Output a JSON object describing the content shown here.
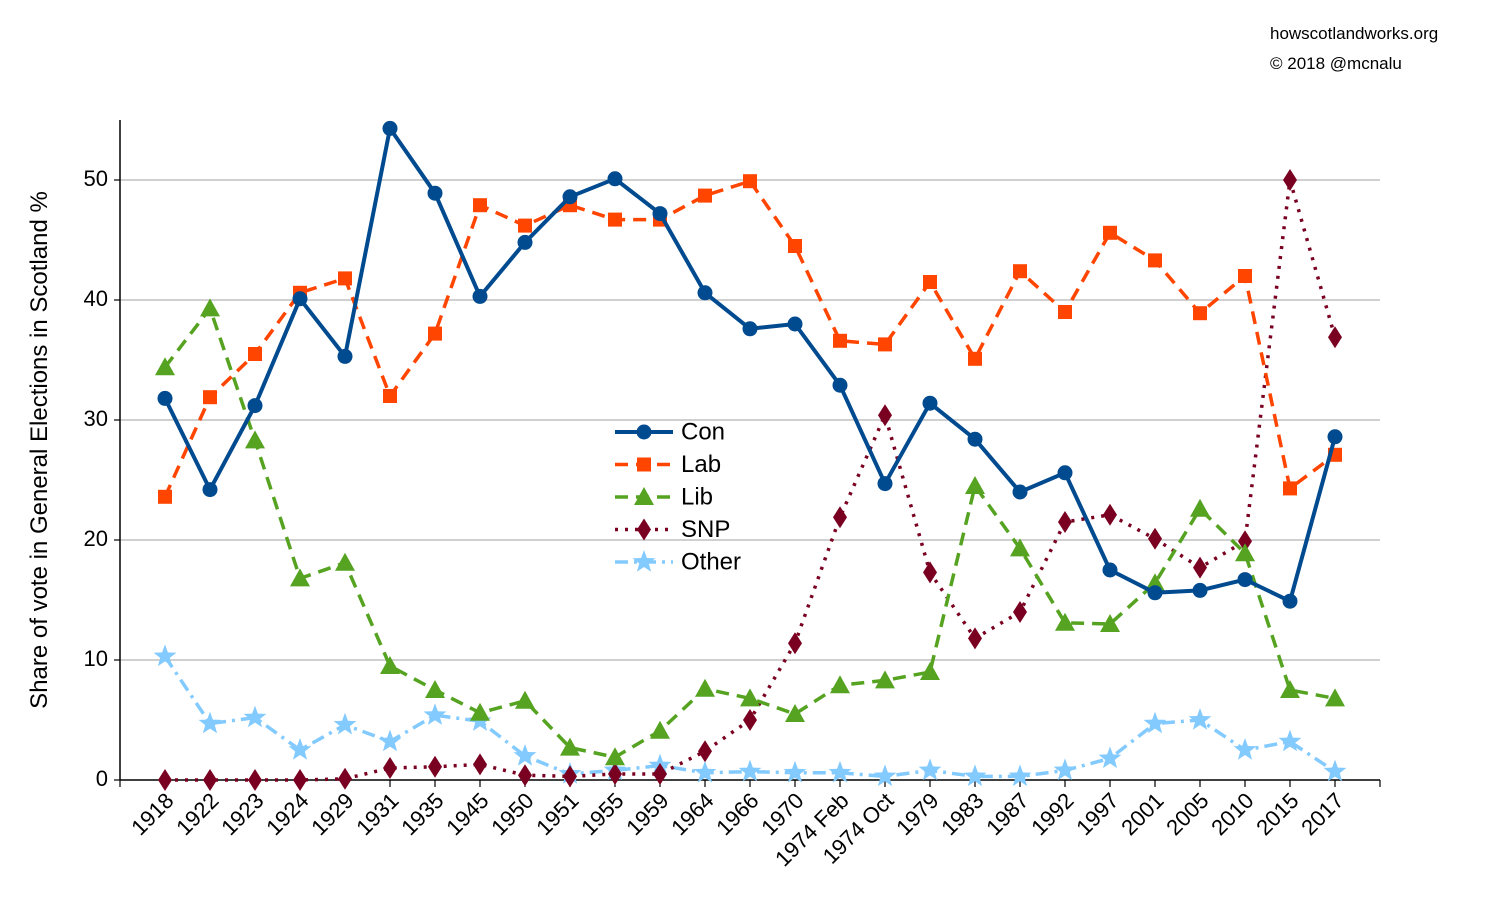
{
  "credits": {
    "site": "howscotlandworks.org",
    "copyright": "© 2018  @mcnalu"
  },
  "chart_data": {
    "type": "line",
    "title": "",
    "xlabel": "",
    "ylabel": "Share of vote in General Elections in Scotland %",
    "ylim": [
      0,
      55
    ],
    "yticks": [
      0,
      10,
      20,
      30,
      40,
      50
    ],
    "grid": "horizontal",
    "legend_position": "center",
    "categories": [
      "1918",
      "1922",
      "1923",
      "1924",
      "1929",
      "1931",
      "1935",
      "1945",
      "1950",
      "1951",
      "1955",
      "1959",
      "1964",
      "1966",
      "1970",
      "1974 Feb",
      "1974 Oct",
      "1979",
      "1983",
      "1987",
      "1992",
      "1997",
      "2001",
      "2005",
      "2010",
      "2015",
      "2017"
    ],
    "series": [
      {
        "name": "Con",
        "color": "#004a8f",
        "marker": "circle",
        "dash": "solid",
        "values": [
          31.8,
          24.2,
          31.2,
          40.1,
          35.3,
          54.3,
          48.9,
          40.3,
          44.8,
          48.6,
          50.1,
          47.2,
          40.6,
          37.6,
          38.0,
          32.9,
          24.7,
          31.4,
          28.4,
          24.0,
          25.6,
          17.5,
          15.6,
          15.8,
          16.7,
          14.9,
          28.6
        ]
      },
      {
        "name": "Lab",
        "color": "#ff4500",
        "marker": "square",
        "dash": "dash",
        "values": [
          23.6,
          31.9,
          35.5,
          40.6,
          41.8,
          32.0,
          37.2,
          47.9,
          46.2,
          47.9,
          46.7,
          46.7,
          48.7,
          49.9,
          44.5,
          36.6,
          36.3,
          41.5,
          35.1,
          42.4,
          39.0,
          45.6,
          43.3,
          38.9,
          42.0,
          24.3,
          27.1
        ]
      },
      {
        "name": "Lib",
        "color": "#55a321",
        "marker": "triangle",
        "dash": "dash",
        "values": [
          34.4,
          39.3,
          28.3,
          16.8,
          18.1,
          9.5,
          7.5,
          5.6,
          6.6,
          2.7,
          1.9,
          4.1,
          7.6,
          6.8,
          5.5,
          7.9,
          8.3,
          9.0,
          24.5,
          19.3,
          13.1,
          13.0,
          16.4,
          22.6,
          18.9,
          7.5,
          6.8
        ]
      },
      {
        "name": "SNP",
        "color": "#7a0021",
        "marker": "diamond",
        "dash": "dot",
        "values": [
          0.0,
          0.0,
          0.0,
          0.0,
          0.1,
          1.0,
          1.1,
          1.3,
          0.4,
          0.3,
          0.5,
          0.5,
          2.4,
          5.0,
          11.4,
          21.9,
          30.4,
          17.3,
          11.8,
          14.0,
          21.5,
          22.1,
          20.1,
          17.7,
          19.9,
          50.0,
          36.9
        ]
      },
      {
        "name": "Other",
        "color": "#83caff",
        "marker": "star",
        "dash": "dashdot",
        "values": [
          10.3,
          4.7,
          5.2,
          2.5,
          4.6,
          3.2,
          5.4,
          4.9,
          2.0,
          0.5,
          0.8,
          1.2,
          0.6,
          0.7,
          0.6,
          0.6,
          0.3,
          0.8,
          0.3,
          0.3,
          0.8,
          1.8,
          4.7,
          5.0,
          2.5,
          3.2,
          0.7
        ]
      }
    ]
  }
}
